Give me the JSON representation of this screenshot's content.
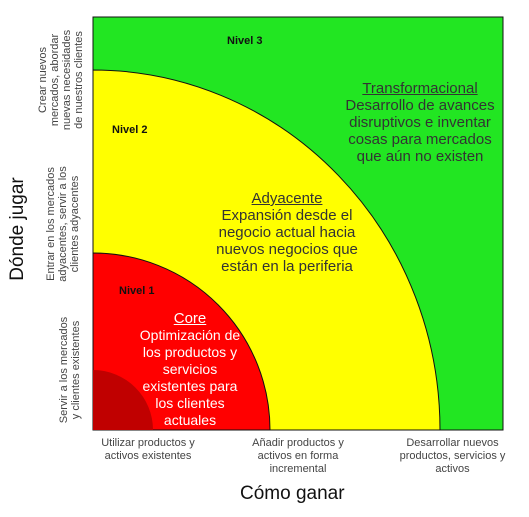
{
  "colors": {
    "green": "#22e622",
    "yellow": "#ffff00",
    "red": "#ff0000",
    "darkred": "#c00000",
    "border": "#111111"
  },
  "levels": {
    "l3": "Nivel 3",
    "l2": "Nivel 2",
    "l1": "Nivel 1"
  },
  "zones": {
    "transformacional": {
      "title": "Transformacional",
      "desc": [
        "Desarrollo de avances",
        "disruptivos e inventar",
        "cosas para mercados",
        "que aún no existen"
      ]
    },
    "adyacente": {
      "title": "Adyacente",
      "desc": [
        "Expansión desde el",
        "negocio actual hacia",
        "nuevos negocios que",
        "están en la periferia"
      ]
    },
    "core": {
      "title": "Core",
      "desc": [
        "Optimización de",
        "los productos y",
        "servicios",
        "existentes para",
        "los clientes",
        "actuales"
      ]
    }
  },
  "axes": {
    "y_title": "Dónde jugar",
    "x_title": "Cómo ganar",
    "y_labels": [
      [
        "Crear nuevos",
        "mercados, abordar",
        "nuevas necesidades",
        "de nuestros clientes"
      ],
      [
        "Entrar en los mercados",
        "adyacentes, servir a los",
        "clientes adyacentes"
      ],
      [
        "Servir a los mercados",
        "y clientes existentes"
      ]
    ],
    "x_labels": [
      [
        "Utilizar productos y",
        "activos existentes"
      ],
      [
        "Añadir productos y",
        "activos en forma",
        "incremental"
      ],
      [
        "Desarrollar nuevos",
        "productos, servicios y",
        "activos"
      ]
    ]
  }
}
